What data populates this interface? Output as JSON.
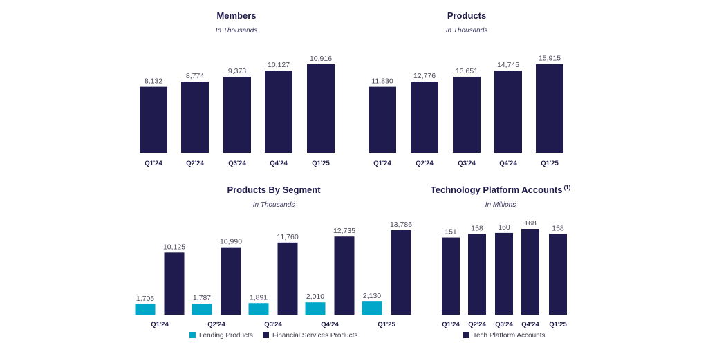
{
  "colors": {
    "navy": "#201b4f",
    "teal": "#00a7c9",
    "axis": "#1e1a4a"
  },
  "chart_data": [
    {
      "type": "bar",
      "title": "Members",
      "subtitle": "In Thousands",
      "categories": [
        "Q1'24",
        "Q2'24",
        "Q3'24",
        "Q4'24",
        "Q1'25"
      ],
      "series": [
        {
          "values": [
            8132,
            8774,
            9373,
            10127,
            10916
          ],
          "labels": [
            "8,132",
            "8,774",
            "9,373",
            "10,127",
            "10,916"
          ],
          "color": "#201b4f"
        }
      ],
      "ylim": [
        0,
        11000
      ]
    },
    {
      "type": "bar",
      "title": "Products",
      "subtitle": "In Thousands",
      "categories": [
        "Q1'24",
        "Q2'24",
        "Q3'24",
        "Q4'24",
        "Q1'25"
      ],
      "series": [
        {
          "values": [
            11830,
            12776,
            13651,
            14745,
            15915
          ],
          "labels": [
            "11,830",
            "12,776",
            "13,651",
            "14,745",
            "15,915"
          ],
          "color": "#201b4f"
        }
      ],
      "ylim": [
        0,
        16000
      ]
    },
    {
      "type": "bar",
      "title": "Products By Segment",
      "subtitle": "In Thousands",
      "categories": [
        "Q1'24",
        "Q2'24",
        "Q3'24",
        "Q4'24",
        "Q1'25"
      ],
      "series": [
        {
          "name": "Lending Products",
          "values": [
            1705,
            1787,
            1891,
            2010,
            2130
          ],
          "labels": [
            "1,705",
            "1,787",
            "1,891",
            "2,010",
            "2,130"
          ],
          "color": "#00a7c9"
        },
        {
          "name": "Financial Services Products",
          "values": [
            10125,
            10990,
            11760,
            12735,
            13786
          ],
          "labels": [
            "10,125",
            "10,990",
            "11,760",
            "12,735",
            "13,786"
          ],
          "color": "#201b4f"
        }
      ],
      "ylim": [
        0,
        14000
      ]
    },
    {
      "type": "bar",
      "title": "Technology Platform Accounts",
      "title_superscript": "(1)",
      "subtitle": "In Millions",
      "categories": [
        "Q1'24",
        "Q2'24",
        "Q3'24",
        "Q4'24",
        "Q1'25"
      ],
      "series": [
        {
          "name": "Tech Platform Accounts",
          "values": [
            151,
            158,
            160,
            168,
            158
          ],
          "labels": [
            "151",
            "158",
            "160",
            "168",
            "158"
          ],
          "color": "#201b4f"
        }
      ],
      "ylim": [
        0,
        168
      ]
    }
  ]
}
